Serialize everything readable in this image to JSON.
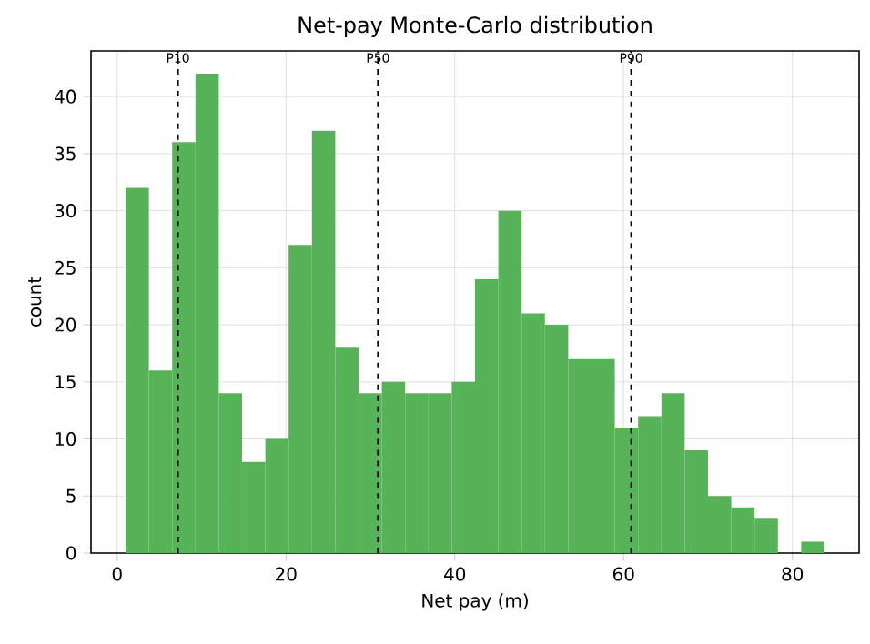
{
  "chart_data": {
    "type": "histogram",
    "title": "Net-pay Monte-Carlo distribution",
    "xlabel": "Net pay (m)",
    "ylabel": "count",
    "bins": [
      1.0,
      3.76,
      6.52,
      9.28,
      12.04,
      14.8,
      17.56,
      20.32,
      23.08,
      25.84,
      28.6,
      31.36,
      34.12,
      36.88,
      39.64,
      42.4,
      45.16,
      47.92,
      50.68,
      53.44,
      56.2,
      58.96,
      61.72,
      64.48,
      67.24,
      70.0,
      72.76,
      75.52,
      78.28,
      81.04,
      83.8
    ],
    "values": [
      32,
      16,
      36,
      42,
      14,
      8,
      10,
      27,
      37,
      18,
      14,
      15,
      14,
      14,
      15,
      24,
      30,
      21,
      20,
      17,
      17,
      11,
      12,
      14,
      9,
      5,
      4,
      3,
      0,
      1
    ],
    "color": "#57b357",
    "xlim": [
      -3.1,
      87.9
    ],
    "ylim": [
      0,
      44
    ],
    "xticks": [
      0,
      20,
      40,
      60,
      80
    ],
    "yticks": [
      0,
      5,
      10,
      15,
      20,
      25,
      30,
      35,
      40
    ],
    "grid": true,
    "ref_lines": [
      {
        "axis": "x",
        "value": 7.2,
        "label": "P10",
        "color": "#000000",
        "line_style": "dashed"
      },
      {
        "axis": "x",
        "value": 30.9,
        "label": "P50",
        "color": "#000000",
        "line_style": "dashed"
      },
      {
        "axis": "x",
        "value": 60.9,
        "label": "P90",
        "color": "#000000",
        "line_style": "dashed"
      }
    ]
  }
}
